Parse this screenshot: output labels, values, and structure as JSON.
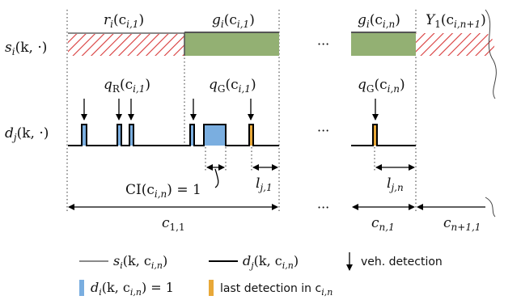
{
  "colors": {
    "red_hatch": "#d83a3a",
    "green": "#93b073",
    "blue": "#7aaee0",
    "orange": "#e8a838",
    "gray_line": "#8a8a8a",
    "black": "#000000"
  },
  "labels": {
    "si_prefix": "s",
    "si_sub": "i",
    "si_args": "(k, ·)",
    "dj_prefix": "d",
    "dj_sub": "j",
    "dj_args": "(k, ·)",
    "r_name": "r",
    "r_sub": "i",
    "r_arg": "(c",
    "r_arg_sub": "i,1",
    "g1_name": "g",
    "g1_sub": "i",
    "g1_arg": "(c",
    "g1_arg_sub": "i,1",
    "gn_name": "g",
    "gn_sub": "i",
    "gn_arg": "(c",
    "gn_arg_sub": "i,n",
    "Y_name": "Y",
    "Y_sub": "1",
    "Y_arg": "(c",
    "Y_arg_sub": "i,n+1",
    "qR_name": "q",
    "qR_sub": "R",
    "qR_arg": "(c",
    "qR_arg_sub": "i,1",
    "qG1_name": "q",
    "qG1_sub": "G",
    "qG1_arg": "(c",
    "qG1_arg_sub": "i,1",
    "qGn_name": "q",
    "qGn_sub": "G",
    "qGn_arg": "(c",
    "qGn_arg_sub": "i,n",
    "CI_name": "CI(c",
    "CI_sub": "i,n",
    "CI_rest": ")  =  1",
    "lj1_name": "l",
    "lj1_sub": "j,1",
    "ljn_name": "l",
    "ljn_sub": "j,n",
    "c11_name": "c",
    "c11_sub": "1,1",
    "cn1_name": "c",
    "cn1_sub": "n,1",
    "cn11_name": "c",
    "cn11_sub": "n+1,1",
    "ellipsis": "···"
  },
  "legend": {
    "si_name": "s",
    "si_sub": "i",
    "si_arg": "(k,  c",
    "si_arg_sub": "i,n",
    "dj_name": "d",
    "dj_sub": "j",
    "dj_arg": "(k,  c",
    "dj_arg_sub": "i,n",
    "veh_detection": "veh. detection",
    "di_name": "d",
    "di_sub": "i",
    "di_arg": "(k,  c",
    "di_arg_sub": "i,n",
    "di_rest": ") = 1",
    "last_detection": "last detection in c",
    "last_detection_sub": "i,n"
  }
}
